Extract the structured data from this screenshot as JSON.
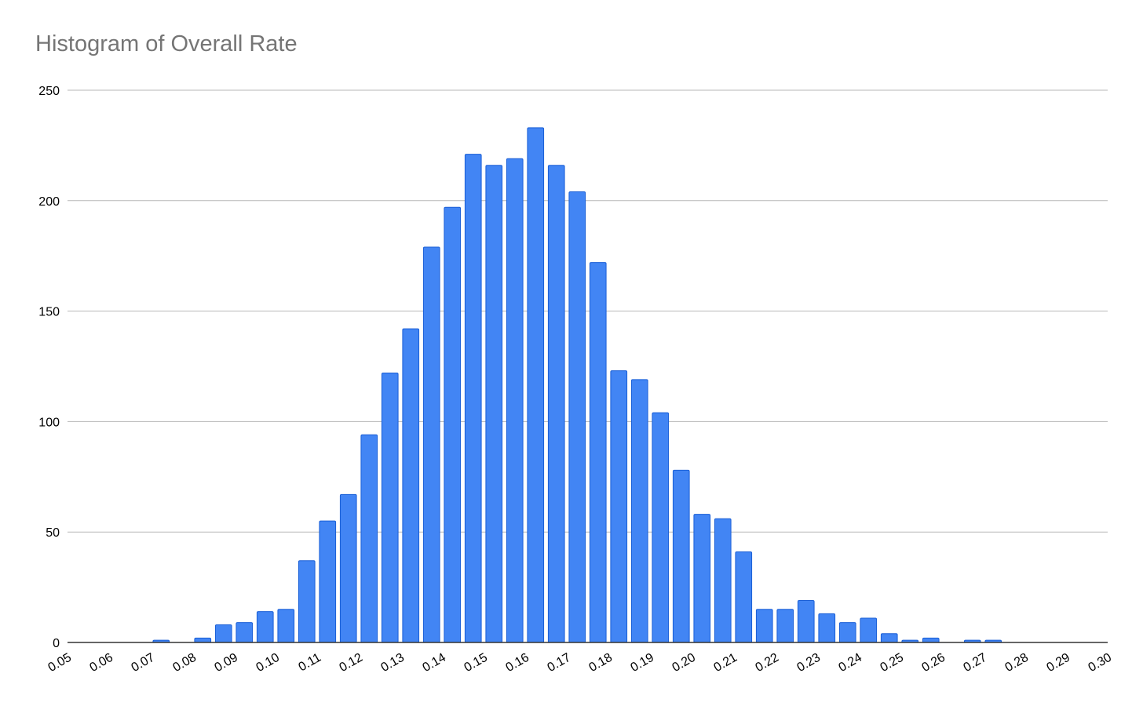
{
  "chart_data": {
    "type": "bar",
    "title": "Histogram of Overall Rate",
    "xlabel": "",
    "ylabel": "",
    "bar_color": "#4285F4",
    "bar_edge_color": "#1A5FD6",
    "grid": true,
    "legend": "none",
    "ylim": [
      0,
      250
    ],
    "y_ticks": [
      "0",
      "50",
      "100",
      "150",
      "200",
      "250"
    ],
    "y_tick_values": [
      0,
      50,
      100,
      150,
      200,
      250
    ],
    "xlim": [
      0.05,
      0.3
    ],
    "x_ticks": [
      "0.05",
      "0.06",
      "0.07",
      "0.08",
      "0.09",
      "0.10",
      "0.11",
      "0.12",
      "0.13",
      "0.14",
      "0.15",
      "0.16",
      "0.17",
      "0.18",
      "0.19",
      "0.20",
      "0.21",
      "0.22",
      "0.23",
      "0.24",
      "0.25",
      "0.26",
      "0.27",
      "0.28",
      "0.29",
      "0.30"
    ],
    "x_tick_values": [
      0.05,
      0.06,
      0.07,
      0.08,
      0.09,
      0.1,
      0.11,
      0.12,
      0.13,
      0.14,
      0.15,
      0.16,
      0.17,
      0.18,
      0.19,
      0.2,
      0.21,
      0.22,
      0.23,
      0.24,
      0.25,
      0.26,
      0.27,
      0.28,
      0.29,
      0.3
    ],
    "bin_width": 0.005,
    "bin_starts": [
      0.05,
      0.055,
      0.06,
      0.065,
      0.07,
      0.075,
      0.08,
      0.085,
      0.09,
      0.095,
      0.1,
      0.105,
      0.11,
      0.115,
      0.12,
      0.125,
      0.13,
      0.135,
      0.14,
      0.145,
      0.15,
      0.155,
      0.16,
      0.165,
      0.17,
      0.175,
      0.18,
      0.185,
      0.19,
      0.195,
      0.2,
      0.205,
      0.21,
      0.215,
      0.22,
      0.225,
      0.23,
      0.235,
      0.24,
      0.245,
      0.25,
      0.255,
      0.26,
      0.265,
      0.27,
      0.275,
      0.28,
      0.285,
      0.29,
      0.295
    ],
    "values": [
      0,
      0,
      0,
      0,
      1,
      0,
      2,
      8,
      9,
      14,
      15,
      37,
      55,
      67,
      94,
      122,
      142,
      179,
      197,
      221,
      216,
      219,
      233,
      216,
      204,
      172,
      123,
      119,
      104,
      78,
      58,
      56,
      41,
      15,
      15,
      19,
      13,
      9,
      11,
      4,
      1,
      2,
      0,
      1,
      1,
      0,
      0,
      0,
      0,
      0
    ]
  }
}
